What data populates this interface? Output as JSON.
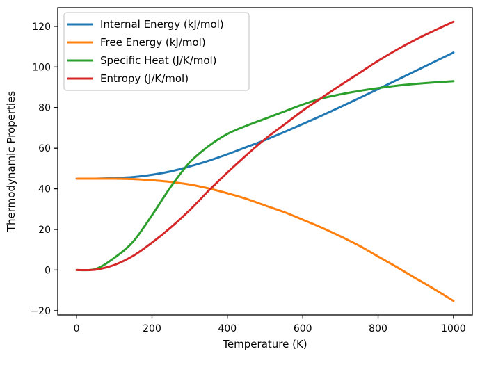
{
  "chart_data": {
    "type": "line",
    "title": "",
    "xlabel": "Temperature (K)",
    "ylabel": "Thermodynamic Properties",
    "x": [
      0,
      50,
      100,
      150,
      200,
      250,
      300,
      350,
      400,
      450,
      500,
      550,
      600,
      650,
      700,
      750,
      800,
      850,
      900,
      950,
      1000
    ],
    "series": [
      {
        "name": "Internal Energy (kJ/mol)",
        "color": "#1f77b4",
        "values": [
          45.0,
          45.0,
          45.3,
          45.8,
          46.9,
          48.6,
          51.0,
          53.8,
          57.0,
          60.5,
          64.0,
          67.9,
          71.9,
          76.0,
          80.3,
          84.7,
          89.1,
          93.6,
          98.1,
          102.6,
          107.1
        ]
      },
      {
        "name": "Free Energy (kJ/mol)",
        "color": "#ff7f0e",
        "values": [
          45.0,
          45.0,
          45.0,
          44.8,
          44.2,
          43.4,
          42.1,
          40.2,
          37.8,
          35.1,
          31.8,
          28.6,
          24.8,
          20.9,
          16.6,
          12.0,
          6.7,
          1.4,
          -4.1,
          -9.5,
          -15.2
        ]
      },
      {
        "name": "Specific Heat (J/K/mol)",
        "color": "#2ca02c",
        "values": [
          0.0,
          0.5,
          6.0,
          14.0,
          27.0,
          41.0,
          53.0,
          61.0,
          67.0,
          71.0,
          74.5,
          78.0,
          81.5,
          84.5,
          86.5,
          88.2,
          89.6,
          90.8,
          91.7,
          92.4,
          93.0
        ]
      },
      {
        "name": "Entropy (J/K/mol)",
        "color": "#d62728",
        "values": [
          0.0,
          0.2,
          2.5,
          7.0,
          13.5,
          21.0,
          29.5,
          39.0,
          48.0,
          56.5,
          64.5,
          71.5,
          78.5,
          84.8,
          91.0,
          97.0,
          103.0,
          108.5,
          113.5,
          118.0,
          122.3
        ]
      }
    ],
    "xlim": [
      -50,
      1050
    ],
    "ylim": [
      -22.1,
      129.2
    ],
    "xticks": [
      0,
      200,
      400,
      600,
      800,
      1000
    ],
    "xtick_labels": [
      "0",
      "200",
      "400",
      "600",
      "800",
      "1000"
    ],
    "yticks": [
      -20,
      0,
      20,
      40,
      60,
      80,
      100,
      120
    ],
    "ytick_labels": [
      "−20",
      "0",
      "20",
      "40",
      "60",
      "80",
      "100",
      "120"
    ],
    "grid": false,
    "legend": {
      "position": "upper left",
      "frame": true,
      "frame_color": "#cccccc"
    },
    "axes_color": "#000000",
    "background_color": "#ffffff"
  }
}
